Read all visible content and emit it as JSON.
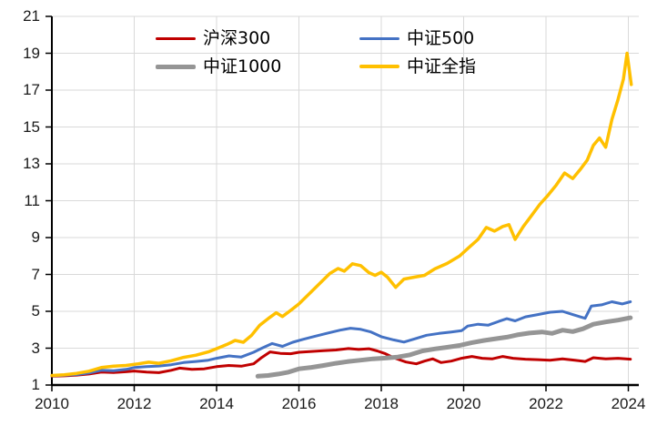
{
  "chart_data": {
    "type": "line",
    "title": "",
    "x_axis": {
      "label": "",
      "ticks": [
        2010,
        2012,
        2014,
        2016,
        2018,
        2020,
        2022,
        2024
      ],
      "range": [
        2010,
        2024.27
      ]
    },
    "y_axis": {
      "label": "",
      "ticks": [
        1,
        3,
        5,
        7,
        9,
        11,
        13,
        15,
        17,
        19,
        21
      ],
      "range": [
        1,
        21
      ]
    },
    "grid": true,
    "gridline_color": "#D9D9D9",
    "axis_color": "#000000",
    "legend": {
      "position": "top-center",
      "rows": 2,
      "columns": 2,
      "order": [
        "沪深300",
        "中证500",
        "中证1000",
        "中证全指"
      ]
    },
    "series": [
      {
        "key": "hs300",
        "name": "沪深300",
        "color": "#C00000",
        "line_width": 3,
        "points": [
          [
            2010.0,
            1.48
          ],
          [
            2010.3,
            1.5
          ],
          [
            2010.6,
            1.54
          ],
          [
            2010.9,
            1.6
          ],
          [
            2011.2,
            1.7
          ],
          [
            2011.5,
            1.68
          ],
          [
            2011.8,
            1.72
          ],
          [
            2012.0,
            1.76
          ],
          [
            2012.3,
            1.7
          ],
          [
            2012.6,
            1.67
          ],
          [
            2012.9,
            1.8
          ],
          [
            2013.1,
            1.92
          ],
          [
            2013.4,
            1.85
          ],
          [
            2013.7,
            1.88
          ],
          [
            2014.0,
            2.0
          ],
          [
            2014.3,
            2.06
          ],
          [
            2014.6,
            2.02
          ],
          [
            2014.9,
            2.15
          ],
          [
            2015.1,
            2.5
          ],
          [
            2015.3,
            2.8
          ],
          [
            2015.55,
            2.72
          ],
          [
            2015.8,
            2.7
          ],
          [
            2016.0,
            2.78
          ],
          [
            2016.3,
            2.82
          ],
          [
            2016.6,
            2.86
          ],
          [
            2016.9,
            2.9
          ],
          [
            2017.2,
            2.98
          ],
          [
            2017.45,
            2.93
          ],
          [
            2017.7,
            2.97
          ],
          [
            2017.9,
            2.85
          ],
          [
            2018.1,
            2.7
          ],
          [
            2018.3,
            2.48
          ],
          [
            2018.6,
            2.25
          ],
          [
            2018.85,
            2.15
          ],
          [
            2019.05,
            2.3
          ],
          [
            2019.25,
            2.42
          ],
          [
            2019.45,
            2.22
          ],
          [
            2019.7,
            2.3
          ],
          [
            2019.95,
            2.45
          ],
          [
            2020.2,
            2.55
          ],
          [
            2020.45,
            2.45
          ],
          [
            2020.7,
            2.42
          ],
          [
            2020.95,
            2.55
          ],
          [
            2021.2,
            2.45
          ],
          [
            2021.5,
            2.4
          ],
          [
            2021.8,
            2.38
          ],
          [
            2022.1,
            2.35
          ],
          [
            2022.4,
            2.42
          ],
          [
            2022.7,
            2.35
          ],
          [
            2022.95,
            2.28
          ],
          [
            2023.15,
            2.48
          ],
          [
            2023.45,
            2.42
          ],
          [
            2023.75,
            2.45
          ],
          [
            2024.05,
            2.4
          ]
        ]
      },
      {
        "key": "zz500",
        "name": "中证500",
        "color": "#4472C4",
        "line_width": 3,
        "points": [
          [
            2010.0,
            1.5
          ],
          [
            2010.3,
            1.53
          ],
          [
            2010.6,
            1.57
          ],
          [
            2010.9,
            1.65
          ],
          [
            2011.2,
            1.8
          ],
          [
            2011.5,
            1.78
          ],
          [
            2011.8,
            1.85
          ],
          [
            2012.0,
            1.95
          ],
          [
            2012.3,
            2.0
          ],
          [
            2012.6,
            2.03
          ],
          [
            2012.9,
            2.1
          ],
          [
            2013.2,
            2.22
          ],
          [
            2013.5,
            2.28
          ],
          [
            2013.8,
            2.35
          ],
          [
            2014.0,
            2.45
          ],
          [
            2014.3,
            2.58
          ],
          [
            2014.6,
            2.52
          ],
          [
            2014.9,
            2.78
          ],
          [
            2015.1,
            3.0
          ],
          [
            2015.35,
            3.25
          ],
          [
            2015.6,
            3.1
          ],
          [
            2015.85,
            3.32
          ],
          [
            2016.1,
            3.48
          ],
          [
            2016.4,
            3.65
          ],
          [
            2016.7,
            3.82
          ],
          [
            2017.0,
            3.98
          ],
          [
            2017.25,
            4.08
          ],
          [
            2017.5,
            4.02
          ],
          [
            2017.75,
            3.88
          ],
          [
            2018.0,
            3.62
          ],
          [
            2018.3,
            3.45
          ],
          [
            2018.55,
            3.33
          ],
          [
            2018.8,
            3.5
          ],
          [
            2019.1,
            3.7
          ],
          [
            2019.4,
            3.8
          ],
          [
            2019.7,
            3.88
          ],
          [
            2019.95,
            3.95
          ],
          [
            2020.1,
            4.2
          ],
          [
            2020.35,
            4.3
          ],
          [
            2020.6,
            4.25
          ],
          [
            2020.85,
            4.45
          ],
          [
            2021.05,
            4.6
          ],
          [
            2021.25,
            4.48
          ],
          [
            2021.5,
            4.7
          ],
          [
            2021.8,
            4.82
          ],
          [
            2022.1,
            4.95
          ],
          [
            2022.4,
            5.0
          ],
          [
            2022.65,
            4.82
          ],
          [
            2022.95,
            4.62
          ],
          [
            2023.1,
            5.28
          ],
          [
            2023.35,
            5.35
          ],
          [
            2023.6,
            5.52
          ],
          [
            2023.85,
            5.4
          ],
          [
            2024.05,
            5.52
          ]
        ]
      },
      {
        "key": "zz1000",
        "name": "中证1000",
        "color": "#959595",
        "line_width": 5,
        "points": [
          [
            2015.0,
            1.48
          ],
          [
            2015.25,
            1.52
          ],
          [
            2015.5,
            1.6
          ],
          [
            2015.75,
            1.7
          ],
          [
            2016.0,
            1.88
          ],
          [
            2016.3,
            1.96
          ],
          [
            2016.6,
            2.06
          ],
          [
            2016.9,
            2.18
          ],
          [
            2017.2,
            2.28
          ],
          [
            2017.5,
            2.35
          ],
          [
            2017.8,
            2.42
          ],
          [
            2018.1,
            2.46
          ],
          [
            2018.4,
            2.52
          ],
          [
            2018.7,
            2.64
          ],
          [
            2019.0,
            2.85
          ],
          [
            2019.3,
            2.96
          ],
          [
            2019.6,
            3.05
          ],
          [
            2019.9,
            3.15
          ],
          [
            2020.2,
            3.3
          ],
          [
            2020.5,
            3.42
          ],
          [
            2020.8,
            3.52
          ],
          [
            2021.05,
            3.6
          ],
          [
            2021.3,
            3.72
          ],
          [
            2021.6,
            3.82
          ],
          [
            2021.9,
            3.88
          ],
          [
            2022.15,
            3.8
          ],
          [
            2022.4,
            3.98
          ],
          [
            2022.65,
            3.9
          ],
          [
            2022.9,
            4.05
          ],
          [
            2023.15,
            4.3
          ],
          [
            2023.45,
            4.42
          ],
          [
            2023.75,
            4.52
          ],
          [
            2024.05,
            4.65
          ]
        ]
      },
      {
        "key": "zzqz",
        "name": "中证全指",
        "color": "#FFC000",
        "line_width": 3.5,
        "points": [
          [
            2010.0,
            1.52
          ],
          [
            2010.3,
            1.56
          ],
          [
            2010.6,
            1.63
          ],
          [
            2010.9,
            1.75
          ],
          [
            2011.2,
            1.95
          ],
          [
            2011.5,
            2.02
          ],
          [
            2011.8,
            2.06
          ],
          [
            2012.1,
            2.15
          ],
          [
            2012.35,
            2.24
          ],
          [
            2012.6,
            2.18
          ],
          [
            2012.9,
            2.32
          ],
          [
            2013.2,
            2.5
          ],
          [
            2013.5,
            2.62
          ],
          [
            2013.8,
            2.8
          ],
          [
            2014.05,
            3.02
          ],
          [
            2014.25,
            3.2
          ],
          [
            2014.45,
            3.42
          ],
          [
            2014.65,
            3.32
          ],
          [
            2014.85,
            3.7
          ],
          [
            2015.05,
            4.25
          ],
          [
            2015.25,
            4.6
          ],
          [
            2015.45,
            4.92
          ],
          [
            2015.6,
            4.72
          ],
          [
            2015.8,
            5.05
          ],
          [
            2016.0,
            5.4
          ],
          [
            2016.25,
            5.95
          ],
          [
            2016.5,
            6.5
          ],
          [
            2016.75,
            7.05
          ],
          [
            2016.95,
            7.32
          ],
          [
            2017.1,
            7.18
          ],
          [
            2017.3,
            7.58
          ],
          [
            2017.5,
            7.48
          ],
          [
            2017.7,
            7.1
          ],
          [
            2017.85,
            6.95
          ],
          [
            2018.0,
            7.12
          ],
          [
            2018.15,
            6.85
          ],
          [
            2018.35,
            6.3
          ],
          [
            2018.55,
            6.75
          ],
          [
            2018.8,
            6.85
          ],
          [
            2019.05,
            6.95
          ],
          [
            2019.3,
            7.3
          ],
          [
            2019.6,
            7.6
          ],
          [
            2019.9,
            8.0
          ],
          [
            2020.1,
            8.4
          ],
          [
            2020.35,
            8.9
          ],
          [
            2020.55,
            9.55
          ],
          [
            2020.75,
            9.35
          ],
          [
            2020.95,
            9.6
          ],
          [
            2021.1,
            9.7
          ],
          [
            2021.25,
            8.9
          ],
          [
            2021.45,
            9.6
          ],
          [
            2021.65,
            10.2
          ],
          [
            2021.85,
            10.8
          ],
          [
            2022.05,
            11.3
          ],
          [
            2022.25,
            11.85
          ],
          [
            2022.45,
            12.5
          ],
          [
            2022.65,
            12.2
          ],
          [
            2022.85,
            12.75
          ],
          [
            2023.0,
            13.2
          ],
          [
            2023.15,
            14.0
          ],
          [
            2023.3,
            14.4
          ],
          [
            2023.45,
            13.9
          ],
          [
            2023.6,
            15.4
          ],
          [
            2023.75,
            16.5
          ],
          [
            2023.88,
            17.6
          ],
          [
            2023.97,
            19.0
          ],
          [
            2024.07,
            17.3
          ]
        ]
      }
    ]
  }
}
